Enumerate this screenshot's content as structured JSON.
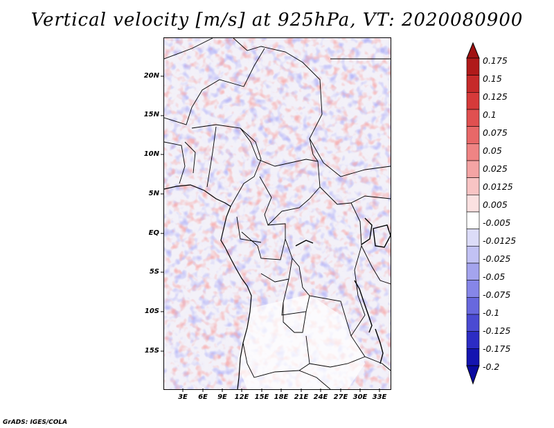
{
  "title": "Vertical velocity [m/s] at 925hPa, VT: 2020080900",
  "footer": "GrADS: IGES/COLA",
  "map": {
    "latitude_labels": [
      "20N",
      "15N",
      "10N",
      "5N",
      "EQ",
      "5S",
      "10S",
      "15S"
    ],
    "latitude_values": [
      20,
      15,
      10,
      5,
      0,
      -5,
      -10,
      -15
    ],
    "longitude_labels": [
      "3E",
      "6E",
      "9E",
      "12E",
      "15E",
      "18E",
      "21E",
      "24E",
      "27E",
      "30E",
      "33E"
    ],
    "longitude_values": [
      3,
      6,
      9,
      12,
      15,
      18,
      21,
      24,
      27,
      30,
      33
    ],
    "lon_range": [
      0,
      34.5
    ],
    "lat_range": [
      -20,
      25
    ]
  },
  "colorbar": {
    "labels": [
      "0.175",
      "0.15",
      "0.125",
      "0.1",
      "0.075",
      "0.05",
      "0.025",
      "0.0125",
      "0.005",
      "-0.005",
      "-0.0125",
      "-0.025",
      "-0.05",
      "-0.075",
      "-0.1",
      "-0.125",
      "-0.175",
      "-0.2"
    ],
    "colors": [
      "#b01a1a",
      "#c62a2a",
      "#d63a3a",
      "#e05050",
      "#e86868",
      "#ef8484",
      "#f4a4a4",
      "#f8c4c4",
      "#fbe1e1",
      "#ffffff",
      "#dcdcf8",
      "#c2c2f4",
      "#a4a4ee",
      "#8686e8",
      "#6868de",
      "#4a4ad2",
      "#2c2cc4",
      "#1414b0"
    ],
    "top_color": "#a01212",
    "bottom_color": "#0a0aa0"
  }
}
